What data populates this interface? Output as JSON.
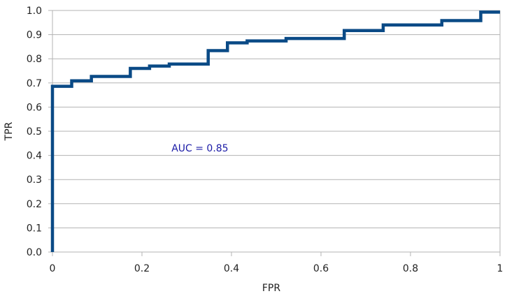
{
  "chart_data": {
    "type": "line",
    "title": "",
    "xlabel": "FPR",
    "ylabel": "TPR",
    "xlim": [
      0,
      1
    ],
    "ylim": [
      0,
      1
    ],
    "x_ticks": [
      0,
      0.2,
      0.4,
      0.6,
      0.8,
      1
    ],
    "x_tick_labels": [
      "0",
      "0.2",
      "0.4",
      "0.6",
      "0.8",
      "1"
    ],
    "y_ticks": [
      0,
      0.1,
      0.2,
      0.3,
      0.4,
      0.5,
      0.6,
      0.7,
      0.8,
      0.9,
      1.0
    ],
    "y_tick_labels": [
      "0.0",
      "0.1",
      "0.2",
      "0.3",
      "0.4",
      "0.5",
      "0.6",
      "0.7",
      "0.8",
      "0.9",
      "1.0"
    ],
    "grid": "horizontal",
    "series": [
      {
        "color": "#0a4a86",
        "x": [
          0,
          0,
          0.043,
          0.043,
          0.087,
          0.087,
          0.174,
          0.174,
          0.217,
          0.217,
          0.261,
          0.261,
          0.348,
          0.348,
          0.391,
          0.391,
          0.435,
          0.435,
          0.522,
          0.522,
          0.652,
          0.652,
          0.739,
          0.739,
          0.87,
          0.87,
          0.957,
          0.957,
          1.0
        ],
        "y": [
          0,
          0.686,
          0.686,
          0.709,
          0.709,
          0.727,
          0.727,
          0.76,
          0.76,
          0.77,
          0.77,
          0.778,
          0.778,
          0.834,
          0.834,
          0.866,
          0.866,
          0.874,
          0.874,
          0.884,
          0.884,
          0.917,
          0.917,
          0.94,
          0.94,
          0.958,
          0.958,
          0.993,
          0.993
        ]
      }
    ],
    "annotation": {
      "text": "AUC = 0.85",
      "x": 0.33,
      "y": 0.43,
      "color": "#1a1aa6"
    }
  }
}
